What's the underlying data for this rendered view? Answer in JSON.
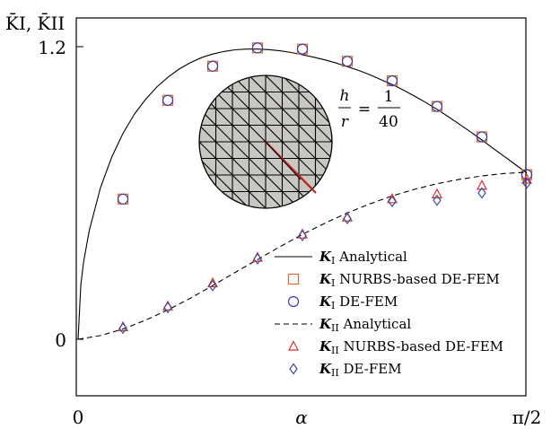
{
  "chart_data": {
    "type": "line",
    "ylabel": "K̄I, K̄II",
    "xlabel": "α",
    "x_ticks": [
      "0",
      "π/2"
    ],
    "y_ticks": [
      "0",
      "1.2"
    ],
    "xlim": [
      0,
      1.5708
    ],
    "ylim": [
      -0.225,
      1.26
    ],
    "annotation": {
      "h": "h",
      "r": "r",
      "eq": "=",
      "num": "1",
      "den": "40"
    },
    "series": [
      {
        "name": "KI Analytical",
        "label_main": "K",
        "label_sub": "I",
        "label_rest": " Analytical",
        "style": "solid",
        "x": [
          0,
          0.0098,
          0.0196,
          0.0393,
          0.0785,
          0.1178,
          0.1571,
          0.1963,
          0.2356,
          0.2749,
          0.3142,
          0.3534,
          0.3927,
          0.432,
          0.4712,
          0.5105,
          0.5498,
          0.589,
          0.6283,
          0.6676,
          0.7069,
          0.7461,
          0.7854,
          0.8247,
          0.8639,
          0.9032,
          0.9425,
          0.9817,
          1.021,
          1.0603,
          1.0996,
          1.1388,
          1.1781,
          1.2174,
          1.2566,
          1.2959,
          1.3352,
          1.3744,
          1.4137,
          1.453,
          1.4923,
          1.5315,
          1.5708
        ],
        "values": [
          0.0,
          0.225,
          0.318,
          0.446,
          0.622,
          0.747,
          0.844,
          0.922,
          0.983,
          1.034,
          1.074,
          1.108,
          1.134,
          1.155,
          1.17,
          1.18,
          1.187,
          1.19,
          1.19,
          1.188,
          1.183,
          1.176,
          1.167,
          1.157,
          1.146,
          1.133,
          1.118,
          1.103,
          1.085,
          1.065,
          1.045,
          1.022,
          0.997,
          0.971,
          0.943,
          0.913,
          0.882,
          0.85,
          0.817,
          0.783,
          0.75,
          0.716,
          0.682
        ]
      },
      {
        "name": "KI NURBS-based DE-FEM",
        "label_main": "K",
        "label_sub": "I",
        "label_rest": " NURBS-based DE-FEM",
        "style": "square",
        "color": "#e06a2a",
        "x": [
          0.1571,
          0.3142,
          0.4712,
          0.6283,
          0.7854,
          0.9425,
          1.0996,
          1.2566,
          1.4137,
          1.5708
        ],
        "values": [
          0.575,
          0.98,
          1.12,
          1.195,
          1.19,
          1.14,
          1.06,
          0.955,
          0.83,
          0.675
        ]
      },
      {
        "name": "KI DE-FEM",
        "label_main": "K",
        "label_sub": "I",
        "label_rest": " DE-FEM",
        "style": "circle",
        "color": "#3c3ca8",
        "x": [
          0.1571,
          0.3142,
          0.4712,
          0.6283,
          0.7854,
          0.9425,
          1.0996,
          1.2566,
          1.4137,
          1.5708
        ],
        "values": [
          0.575,
          0.98,
          1.12,
          1.195,
          1.19,
          1.14,
          1.06,
          0.955,
          0.83,
          0.675
        ]
      },
      {
        "name": "KII Analytical",
        "label_main": "K",
        "label_sub": "II",
        "label_rest": " Analytical",
        "style": "dashed",
        "x": [
          0,
          0.0785,
          0.1571,
          0.2356,
          0.3142,
          0.3927,
          0.4712,
          0.5498,
          0.6283,
          0.7069,
          0.7854,
          0.8639,
          0.9425,
          1.021,
          1.0996,
          1.1781,
          1.2566,
          1.3352,
          1.4137,
          1.4923,
          1.5708
        ],
        "values": [
          0.0,
          0.015,
          0.042,
          0.078,
          0.12,
          0.168,
          0.22,
          0.274,
          0.327,
          0.38,
          0.43,
          0.476,
          0.518,
          0.555,
          0.588,
          0.615,
          0.638,
          0.656,
          0.67,
          0.68,
          0.685
        ]
      },
      {
        "name": "KII NURBS-based DE-FEM",
        "label_main": "K",
        "label_sub": "II",
        "label_rest": " NURBS-based DE-FEM",
        "style": "triangle",
        "color": "#d63030",
        "x": [
          0.1571,
          0.3142,
          0.4712,
          0.6283,
          0.7854,
          0.9425,
          1.0996,
          1.2566,
          1.4137,
          1.5708
        ],
        "values": [
          0.05,
          0.135,
          0.23,
          0.335,
          0.43,
          0.5,
          0.575,
          0.595,
          0.63,
          0.655
        ]
      },
      {
        "name": "KII DE-FEM",
        "label_main": "K",
        "label_sub": "II",
        "label_rest": " DE-FEM",
        "style": "diamond",
        "color": "#3c4ca0",
        "x": [
          0.1571,
          0.3142,
          0.4712,
          0.6283,
          0.7854,
          0.9425,
          1.0996,
          1.2566,
          1.4137,
          1.5708
        ],
        "values": [
          0.045,
          0.13,
          0.22,
          0.33,
          0.425,
          0.495,
          0.565,
          0.57,
          0.6,
          0.64
        ]
      }
    ]
  }
}
